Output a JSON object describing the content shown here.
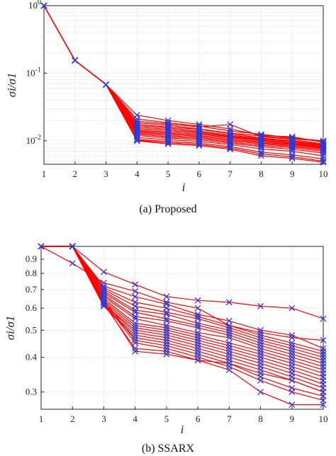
{
  "chart_data": [
    {
      "type": "line",
      "caption": "(a) Proposed",
      "xlabel": "i",
      "ylabel": "σi/σ1",
      "x": [
        1,
        2,
        3,
        4,
        5,
        6,
        7,
        8,
        9,
        10
      ],
      "xlim": [
        1,
        10
      ],
      "ylim": [
        0.0045,
        1.0
      ],
      "yscale": "log",
      "xticks": [
        1,
        2,
        3,
        4,
        5,
        6,
        7,
        8,
        9,
        10
      ],
      "yticks": [
        {
          "value": 1.0,
          "label": "10",
          "exp": "0"
        },
        {
          "value": 0.1,
          "label": "10",
          "exp": "-1"
        },
        {
          "value": 0.01,
          "label": "10",
          "exp": "-2"
        }
      ],
      "grid": true,
      "line_color": "#ff0000",
      "marker_color": "#2b3bd6",
      "series": [
        {
          "values": [
            1,
            0.155,
            0.068,
            0.024,
            0.02,
            0.0175,
            0.015,
            0.012,
            0.0115,
            0.0095
          ]
        },
        {
          "values": [
            1,
            0.155,
            0.068,
            0.021,
            0.0185,
            0.0165,
            0.014,
            0.0125,
            0.011,
            0.01
          ]
        },
        {
          "values": [
            1,
            0.155,
            0.068,
            0.0195,
            0.0178,
            0.016,
            0.0175,
            0.0115,
            0.0105,
            0.009
          ]
        },
        {
          "values": [
            1,
            0.155,
            0.068,
            0.0185,
            0.017,
            0.015,
            0.013,
            0.0118,
            0.0108,
            0.0098
          ]
        },
        {
          "values": [
            1,
            0.155,
            0.068,
            0.0175,
            0.016,
            0.0148,
            0.0128,
            0.011,
            0.01,
            0.0088
          ]
        },
        {
          "values": [
            1,
            0.155,
            0.068,
            0.0168,
            0.0155,
            0.014,
            0.0122,
            0.0108,
            0.0098,
            0.0086
          ]
        },
        {
          "values": [
            1,
            0.155,
            0.068,
            0.016,
            0.0148,
            0.0135,
            0.0118,
            0.0105,
            0.0095,
            0.0084
          ]
        },
        {
          "values": [
            1,
            0.155,
            0.068,
            0.0152,
            0.0142,
            0.013,
            0.0115,
            0.0102,
            0.0092,
            0.0082
          ]
        },
        {
          "values": [
            1,
            0.155,
            0.068,
            0.0145,
            0.0135,
            0.0125,
            0.0112,
            0.01,
            0.009,
            0.008
          ]
        },
        {
          "values": [
            1,
            0.155,
            0.068,
            0.014,
            0.013,
            0.012,
            0.0108,
            0.0096,
            0.0088,
            0.0078
          ]
        },
        {
          "values": [
            1,
            0.155,
            0.068,
            0.0135,
            0.0125,
            0.0116,
            0.0104,
            0.0093,
            0.0085,
            0.0076
          ]
        },
        {
          "values": [
            1,
            0.155,
            0.068,
            0.013,
            0.012,
            0.0112,
            0.01,
            0.009,
            0.0082,
            0.0073
          ]
        },
        {
          "values": [
            1,
            0.155,
            0.068,
            0.0125,
            0.0115,
            0.0108,
            0.0096,
            0.0086,
            0.0079,
            0.007
          ]
        },
        {
          "values": [
            1,
            0.155,
            0.068,
            0.012,
            0.011,
            0.0104,
            0.0092,
            0.0082,
            0.0075,
            0.0066
          ]
        },
        {
          "values": [
            1,
            0.155,
            0.068,
            0.0112,
            0.0104,
            0.0098,
            0.0088,
            0.0076,
            0.007,
            0.006
          ]
        },
        {
          "values": [
            1,
            0.155,
            0.068,
            0.0105,
            0.0098,
            0.0092,
            0.0082,
            0.0068,
            0.0062,
            0.0054
          ]
        },
        {
          "values": [
            1,
            0.155,
            0.068,
            0.01,
            0.009,
            0.0085,
            0.0075,
            0.006,
            0.0055,
            0.0048
          ]
        },
        {
          "values": [
            1,
            0.155,
            0.068,
            0.0102,
            0.0094,
            0.0088,
            0.0078,
            0.0064,
            0.0058,
            0.005
          ]
        }
      ]
    },
    {
      "type": "line",
      "caption": "(b) SSARX",
      "xlabel": "i",
      "ylabel": "σi/σ1",
      "x": [
        1,
        2,
        3,
        4,
        5,
        6,
        7,
        8,
        9,
        10
      ],
      "xlim": [
        1,
        10
      ],
      "ylim": [
        0.26,
        1.0
      ],
      "yscale": "log",
      "xticks": [
        1,
        2,
        3,
        4,
        5,
        6,
        7,
        8,
        9,
        10
      ],
      "yticks": [
        {
          "value": 0.3,
          "label": "0.3"
        },
        {
          "value": 0.4,
          "label": "0.4"
        },
        {
          "value": 0.5,
          "label": "0.5"
        },
        {
          "value": 0.6,
          "label": "0.6"
        },
        {
          "value": 0.7,
          "label": "0.7"
        },
        {
          "value": 0.8,
          "label": "0.8"
        },
        {
          "value": 0.9,
          "label": "0.9"
        }
      ],
      "grid": true,
      "line_color": "#ff0000",
      "marker_color": "#2b3bd6",
      "series": [
        {
          "values": [
            1,
            1,
            0.81,
            0.73,
            0.66,
            0.64,
            0.63,
            0.61,
            0.6,
            0.55
          ]
        },
        {
          "values": [
            1,
            0.87,
            0.74,
            0.69,
            0.63,
            0.6,
            0.52,
            0.49,
            0.47,
            0.46
          ]
        },
        {
          "values": [
            1,
            1,
            0.72,
            0.66,
            0.62,
            0.57,
            0.54,
            0.5,
            0.48,
            0.43
          ]
        },
        {
          "values": [
            1,
            1,
            0.71,
            0.63,
            0.6,
            0.56,
            0.52,
            0.48,
            0.45,
            0.42
          ]
        },
        {
          "values": [
            1,
            1,
            0.7,
            0.61,
            0.58,
            0.55,
            0.51,
            0.47,
            0.44,
            0.41
          ]
        },
        {
          "values": [
            1,
            1,
            0.69,
            0.59,
            0.57,
            0.53,
            0.5,
            0.46,
            0.43,
            0.4
          ]
        },
        {
          "values": [
            1,
            1,
            0.68,
            0.58,
            0.55,
            0.52,
            0.49,
            0.45,
            0.42,
            0.39
          ]
        },
        {
          "values": [
            1,
            1,
            0.67,
            0.56,
            0.54,
            0.51,
            0.48,
            0.44,
            0.41,
            0.38
          ]
        },
        {
          "values": [
            1,
            1,
            0.66,
            0.55,
            0.52,
            0.49,
            0.47,
            0.43,
            0.4,
            0.37
          ]
        },
        {
          "values": [
            1,
            1,
            0.65,
            0.53,
            0.51,
            0.48,
            0.45,
            0.42,
            0.39,
            0.36
          ]
        },
        {
          "values": [
            1,
            1,
            0.64,
            0.52,
            0.5,
            0.47,
            0.44,
            0.41,
            0.38,
            0.35
          ]
        },
        {
          "values": [
            1,
            1,
            0.63,
            0.51,
            0.49,
            0.46,
            0.43,
            0.4,
            0.37,
            0.34
          ]
        },
        {
          "values": [
            1,
            1,
            0.62,
            0.5,
            0.48,
            0.45,
            0.42,
            0.39,
            0.36,
            0.33
          ]
        },
        {
          "values": [
            1,
            1,
            0.62,
            0.49,
            0.47,
            0.44,
            0.41,
            0.38,
            0.35,
            0.32
          ]
        },
        {
          "values": [
            1,
            1,
            0.61,
            0.48,
            0.46,
            0.43,
            0.4,
            0.37,
            0.34,
            0.31
          ]
        },
        {
          "values": [
            1,
            1,
            0.61,
            0.47,
            0.45,
            0.42,
            0.39,
            0.36,
            0.33,
            0.3
          ]
        },
        {
          "values": [
            1,
            1,
            0.64,
            0.46,
            0.44,
            0.41,
            0.38,
            0.34,
            0.31,
            0.29
          ]
        },
        {
          "values": [
            1,
            1,
            0.63,
            0.45,
            0.43,
            0.4,
            0.37,
            0.33,
            0.3,
            0.28
          ]
        },
        {
          "values": [
            1,
            1,
            0.62,
            0.43,
            0.42,
            0.39,
            0.36,
            0.3,
            0.27,
            0.27
          ]
        },
        {
          "values": [
            1,
            1,
            0.63,
            0.42,
            0.41,
            0.39,
            0.38,
            0.35,
            0.33,
            0.3
          ]
        }
      ]
    }
  ]
}
